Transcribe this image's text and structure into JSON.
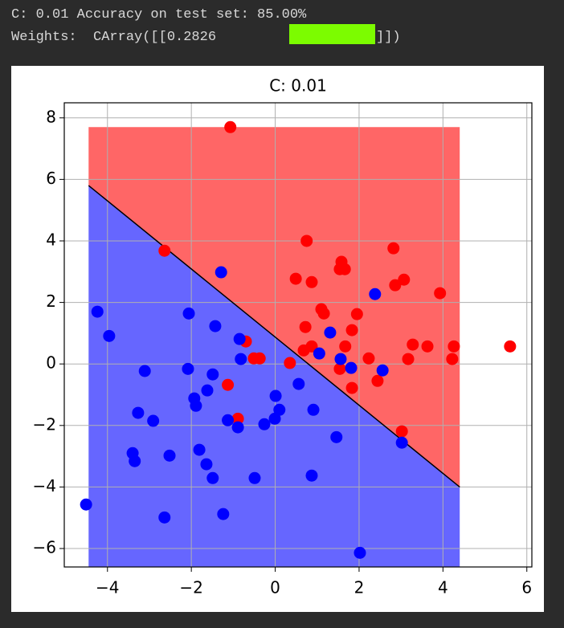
{
  "output": {
    "lines": [
      "C: 0.01 Accuracy on test set: 85.00%",
      "Weights:  CArray([[0.2826",
      "]])"
    ]
  },
  "chart_data": {
    "type": "scatter",
    "title": "C: 0.01",
    "xlim": [
      -5.03,
      6.12
    ],
    "ylim": [
      -6.6,
      8.49
    ],
    "xticks": [
      {
        "value": -4,
        "label": "−4"
      },
      {
        "value": -2,
        "label": "−2"
      },
      0,
      2,
      4,
      6
    ],
    "yticks": [
      {
        "value": -6,
        "label": "−6"
      },
      {
        "value": -4,
        "label": "−4"
      },
      {
        "value": -2,
        "label": "−2"
      },
      0,
      2,
      4,
      6,
      8
    ],
    "grid": true,
    "region": {
      "xlim": [
        -4.45,
        4.4
      ],
      "ylim": [
        -6.6,
        7.7
      ],
      "colors": [
        "#ff6666",
        "#6666ff"
      ]
    },
    "boundary": {
      "x": [
        -4.45,
        4.4
      ],
      "y": [
        5.8,
        -4.0
      ],
      "color": "#000000"
    },
    "series": [
      {
        "color": "#ff0000",
        "x": [
          -1.07,
          -2.64,
          0.75,
          0.49,
          0.87,
          1.58,
          1.54,
          1.66,
          2.82,
          2.86,
          3.07,
          3.93,
          1.1,
          1.16,
          1.95,
          0.72,
          1.83,
          -0.7,
          0.68,
          0.87,
          1.67,
          2.23,
          1.54,
          2.44,
          1.83,
          3.28,
          3.63,
          4.22,
          4.26,
          3.17,
          5.6,
          -0.51,
          -0.37,
          0.35,
          -1.13,
          -0.89,
          3.02
        ],
        "values": [
          7.7,
          3.68,
          4.0,
          2.77,
          2.66,
          3.32,
          3.08,
          3.08,
          3.76,
          2.56,
          2.74,
          2.3,
          1.78,
          1.64,
          1.62,
          1.2,
          1.1,
          0.73,
          0.44,
          0.57,
          0.57,
          0.18,
          -0.16,
          -0.55,
          -0.78,
          0.63,
          0.57,
          0.16,
          0.57,
          0.16,
          0.57,
          0.18,
          0.18,
          0.03,
          -0.68,
          -1.78,
          -2.19
        ]
      },
      {
        "color": "#0000ff",
        "x": [
          -1.29,
          -4.24,
          -3.96,
          -2.06,
          -1.43,
          -0.85,
          -0.82,
          1.31,
          1.05,
          1.56,
          2.38,
          1.81,
          2.56,
          -3.11,
          -2.08,
          -1.49,
          -1.93,
          -1.89,
          -1.62,
          -3.27,
          -2.91,
          -1.13,
          -0.89,
          0.01,
          0.1,
          -0.01,
          -0.26,
          0.56,
          0.91,
          1.46,
          3.02,
          -3.4,
          -3.35,
          -2.52,
          -1.81,
          -1.64,
          -1.49,
          -0.49,
          0.87,
          -4.51,
          -2.64,
          -1.24,
          2.02
        ],
        "values": [
          2.98,
          1.7,
          0.91,
          1.64,
          1.23,
          0.81,
          0.16,
          1.02,
          0.34,
          0.16,
          2.27,
          -0.13,
          -0.21,
          -0.23,
          -0.16,
          -0.34,
          -1.12,
          -1.36,
          -0.86,
          -1.59,
          -1.85,
          -1.83,
          -2.06,
          -1.04,
          -1.49,
          -1.78,
          -1.96,
          -0.65,
          -1.49,
          -2.38,
          -2.56,
          -2.9,
          -3.16,
          -2.98,
          -2.79,
          -3.26,
          -3.71,
          -3.71,
          -3.63,
          -4.57,
          -4.99,
          -4.88,
          -6.14
        ]
      }
    ]
  }
}
